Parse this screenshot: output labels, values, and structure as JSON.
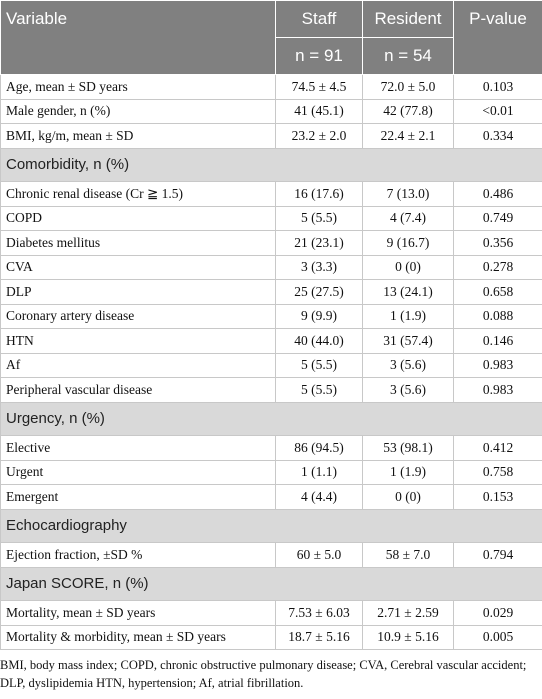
{
  "table": {
    "header": [
      "Variable",
      "Staff",
      "Resident",
      "P-value"
    ],
    "subheader": [
      "n = 91",
      "n = 54"
    ],
    "rows": [
      [
        "Age, mean ± SD years",
        "74.5 ± 4.5",
        "72.0 ± 5.0",
        "0.103"
      ],
      [
        "Male gender, n (%)",
        "41 (45.1)",
        "42 (77.8)",
        "<0.01"
      ],
      [
        "BMI, kg/m, mean ± SD",
        "23.2 ± 2.0",
        "22.4 ± 2.1",
        "0.334"
      ],
      [
        "Comorbidity, n (%)"
      ],
      [
        "Chronic renal disease (Cr ≧ 1.5)",
        "16 (17.6)",
        "7 (13.0)",
        "0.486"
      ],
      [
        "COPD",
        "5 (5.5)",
        "4 (7.4)",
        "0.749"
      ],
      [
        "Diabetes mellitus",
        "21 (23.1)",
        "9 (16.7)",
        "0.356"
      ],
      [
        "CVA",
        "3 (3.3)",
        "0 (0)",
        "0.278"
      ],
      [
        "DLP",
        "25 (27.5)",
        "13 (24.1)",
        "0.658"
      ],
      [
        "Coronary artery disease",
        "9 (9.9)",
        "1 (1.9)",
        "0.088"
      ],
      [
        "HTN",
        "40 (44.0)",
        "31 (57.4)",
        "0.146"
      ],
      [
        "Af",
        "5 (5.5)",
        "3 (5.6)",
        "0.983"
      ],
      [
        "Peripheral vascular disease",
        "5 (5.5)",
        "3 (5.6)",
        "0.983"
      ],
      [
        "Urgency, n (%)"
      ],
      [
        "Elective",
        "86 (94.5)",
        "53 (98.1)",
        "0.412"
      ],
      [
        "Urgent",
        "1 (1.1)",
        "1 (1.9)",
        "0.758"
      ],
      [
        "Emergent",
        "4 (4.4)",
        "0 (0)",
        "0.153"
      ],
      [
        "Echocardiography"
      ],
      [
        "Ejection fraction, ±SD %",
        "60 ± 5.0",
        "58 ± 7.0",
        "0.794"
      ],
      [
        "Japan SCORE, n (%)"
      ],
      [
        "Mortality, mean ± SD years",
        "7.53 ± 6.03",
        "2.71 ± 2.59",
        "0.029"
      ],
      [
        "Mortality & morbidity, mean ± SD years",
        "18.7 ± 5.16",
        "10.9 ± 5.16",
        "0.005"
      ]
    ],
    "footnote": "BMI, body mass index; COPD, chronic obstructive pulmonary disease; CVA, Cerebral vascular accident; DLP, dyslipidemia HTN, hypertension; Af, atrial fibrillation."
  }
}
